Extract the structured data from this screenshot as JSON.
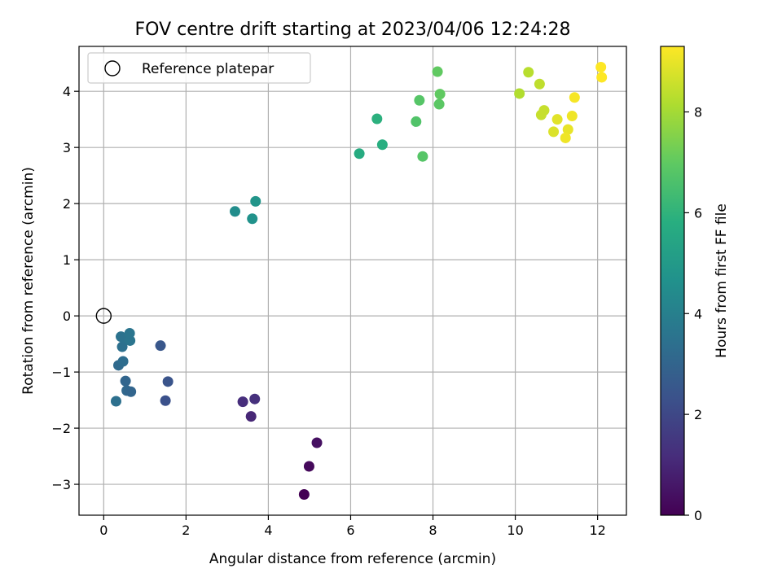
{
  "chart_data": {
    "type": "scatter",
    "title": "FOV centre drift starting at 2023/04/06 12:24:28",
    "xlabel": "Angular distance from reference (arcmin)",
    "ylabel": "Rotation from reference (arcmin)",
    "xlim": [
      -0.6,
      12.7
    ],
    "ylim": [
      -3.55,
      4.8
    ],
    "xticks": [
      0,
      2,
      4,
      6,
      8,
      10,
      12
    ],
    "yticks": [
      -3,
      -2,
      -1,
      0,
      1,
      2,
      3,
      4
    ],
    "grid": true,
    "legend": {
      "position": "top-left",
      "entries": [
        {
          "label": "Reference platepar",
          "marker": "open-circle",
          "x": 0,
          "y": 0
        }
      ]
    },
    "colorbar": {
      "label": "Hours from first FF file",
      "colormap": "viridis",
      "range": [
        0,
        9.3
      ],
      "ticks": [
        0,
        2,
        4,
        6,
        8
      ]
    },
    "points": [
      {
        "x": 4.87,
        "y": -3.18,
        "hours": 0.0
      },
      {
        "x": 4.99,
        "y": -2.68,
        "hours": 0.2
      },
      {
        "x": 5.18,
        "y": -2.26,
        "hours": 0.4
      },
      {
        "x": 3.58,
        "y": -1.79,
        "hours": 1.0
      },
      {
        "x": 3.38,
        "y": -1.53,
        "hours": 1.2
      },
      {
        "x": 3.67,
        "y": -1.48,
        "hours": 1.3
      },
      {
        "x": 1.5,
        "y": -1.51,
        "hours": 2.3
      },
      {
        "x": 1.56,
        "y": -1.17,
        "hours": 2.4
      },
      {
        "x": 1.38,
        "y": -0.53,
        "hours": 2.5
      },
      {
        "x": 0.3,
        "y": -1.52,
        "hours": 3.4
      },
      {
        "x": 0.56,
        "y": -1.33,
        "hours": 3.1
      },
      {
        "x": 0.66,
        "y": -1.35,
        "hours": 3.0
      },
      {
        "x": 0.53,
        "y": -1.16,
        "hours": 3.0
      },
      {
        "x": 0.36,
        "y": -0.88,
        "hours": 3.2
      },
      {
        "x": 0.47,
        "y": -0.81,
        "hours": 3.3
      },
      {
        "x": 0.45,
        "y": -0.55,
        "hours": 3.4
      },
      {
        "x": 0.42,
        "y": -0.37,
        "hours": 3.5
      },
      {
        "x": 0.52,
        "y": -0.4,
        "hours": 3.5
      },
      {
        "x": 0.64,
        "y": -0.44,
        "hours": 3.6
      },
      {
        "x": 0.63,
        "y": -0.31,
        "hours": 3.6
      },
      {
        "x": 3.19,
        "y": 1.86,
        "hours": 4.5
      },
      {
        "x": 3.61,
        "y": 1.73,
        "hours": 4.7
      },
      {
        "x": 3.69,
        "y": 2.04,
        "hours": 4.8
      },
      {
        "x": 6.21,
        "y": 2.89,
        "hours": 5.7
      },
      {
        "x": 6.77,
        "y": 3.05,
        "hours": 5.8
      },
      {
        "x": 6.64,
        "y": 3.51,
        "hours": 5.9
      },
      {
        "x": 7.59,
        "y": 3.46,
        "hours": 6.7
      },
      {
        "x": 7.75,
        "y": 2.84,
        "hours": 6.8
      },
      {
        "x": 7.67,
        "y": 3.84,
        "hours": 6.8
      },
      {
        "x": 8.15,
        "y": 3.77,
        "hours": 6.9
      },
      {
        "x": 8.17,
        "y": 3.95,
        "hours": 7.0
      },
      {
        "x": 8.11,
        "y": 4.35,
        "hours": 7.0
      },
      {
        "x": 10.1,
        "y": 3.96,
        "hours": 8.2
      },
      {
        "x": 10.32,
        "y": 4.34,
        "hours": 8.3
      },
      {
        "x": 10.59,
        "y": 4.13,
        "hours": 8.4
      },
      {
        "x": 10.7,
        "y": 3.66,
        "hours": 8.5
      },
      {
        "x": 10.63,
        "y": 3.58,
        "hours": 8.5
      },
      {
        "x": 10.93,
        "y": 3.28,
        "hours": 8.8
      },
      {
        "x": 11.02,
        "y": 3.5,
        "hours": 8.9
      },
      {
        "x": 11.28,
        "y": 3.32,
        "hours": 9.0
      },
      {
        "x": 11.22,
        "y": 3.17,
        "hours": 9.1
      },
      {
        "x": 11.38,
        "y": 3.56,
        "hours": 9.1
      },
      {
        "x": 11.44,
        "y": 3.89,
        "hours": 9.2
      },
      {
        "x": 12.08,
        "y": 4.43,
        "hours": 9.3
      },
      {
        "x": 12.1,
        "y": 4.25,
        "hours": 9.3
      }
    ]
  }
}
